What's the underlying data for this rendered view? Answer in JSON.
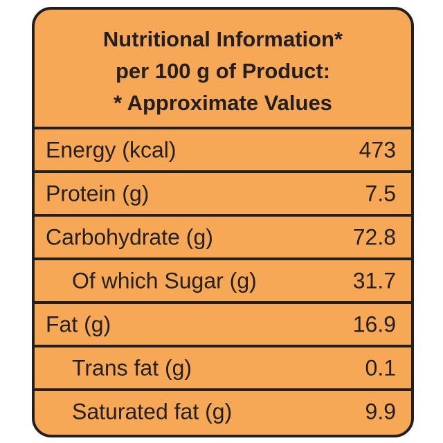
{
  "header": {
    "line1": "Nutritional Information*",
    "line2": "per 100 g of Product:",
    "line3": "* Approximate Values"
  },
  "rows": [
    {
      "label": "Energy (kcal)",
      "value": "473"
    },
    {
      "label": "Protein (g)",
      "value": "7.5"
    },
    {
      "label": "Carbohydrate (g)",
      "value": "72.8"
    },
    {
      "label": "Of which Sugar (g)",
      "value": "31.7"
    },
    {
      "label": "Fat (g)",
      "value": "16.9"
    },
    {
      "label": "Trans fat (g)",
      "value": "0.1"
    },
    {
      "label": "Saturated fat (g)",
      "value": "9.9"
    }
  ],
  "colors": {
    "background": "#f7a856",
    "border": "#231f20",
    "text": "#231f20"
  }
}
